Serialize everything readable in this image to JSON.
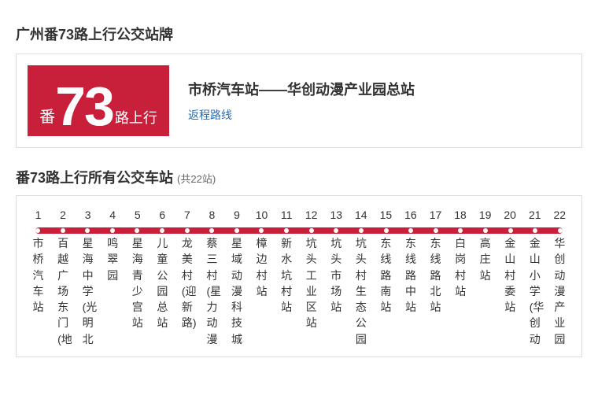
{
  "header": {
    "title": "广州番73路上行公交站牌"
  },
  "badge": {
    "prefix": "番",
    "number": "73",
    "suffix": "路上行",
    "bg_color": "#c81f3b"
  },
  "route": {
    "name": "市桥汽车站——华创动漫产业园总站",
    "return_label": "返程路线"
  },
  "stops_header": {
    "prefix": "番73路上行所有公交车站",
    "count": "(共22站)"
  },
  "stops": [
    {
      "n": "1",
      "name": "市桥汽车站"
    },
    {
      "n": "2",
      "name": "百越广场东门(地"
    },
    {
      "n": "3",
      "name": "星海中学(光明北"
    },
    {
      "n": "4",
      "name": "鸣翠园"
    },
    {
      "n": "5",
      "name": "星海青少宫站"
    },
    {
      "n": "6",
      "name": "儿童公园总站"
    },
    {
      "n": "7",
      "name": "龙美村(迎新路)"
    },
    {
      "n": "8",
      "name": "蔡三村(星力动漫"
    },
    {
      "n": "9",
      "name": "星域动漫科技城"
    },
    {
      "n": "10",
      "name": "樟边村站"
    },
    {
      "n": "11",
      "name": "新水坑村站"
    },
    {
      "n": "12",
      "name": "坑头工业区站"
    },
    {
      "n": "13",
      "name": "坑头市场站"
    },
    {
      "n": "14",
      "name": "坑头村生态公园"
    },
    {
      "n": "15",
      "name": "东线路南站"
    },
    {
      "n": "16",
      "name": "东线路中站"
    },
    {
      "n": "17",
      "name": "东线路北站"
    },
    {
      "n": "18",
      "name": "白岗村站"
    },
    {
      "n": "19",
      "name": "高庄站"
    },
    {
      "n": "20",
      "name": "金山村委站"
    },
    {
      "n": "21",
      "name": "金山小学(华创动"
    },
    {
      "n": "22",
      "name": "华创动漫产业园"
    }
  ],
  "style": {
    "line_color": "#c81f3b",
    "dot_color": "#ffffff",
    "link_color": "#2b6cb0",
    "border_color": "#dddddd"
  }
}
